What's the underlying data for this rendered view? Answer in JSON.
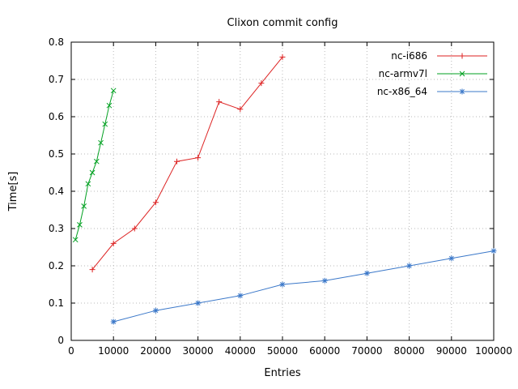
{
  "chart_data": {
    "type": "line",
    "title": "Clixon commit config",
    "xlabel": "Entries",
    "ylabel": "Time[s]",
    "xlim": [
      0,
      100000
    ],
    "ylim": [
      0,
      0.8
    ],
    "xticks": [
      0,
      10000,
      20000,
      30000,
      40000,
      50000,
      60000,
      70000,
      80000,
      90000,
      100000
    ],
    "xtick_labels": [
      "0",
      "10000",
      "20000",
      "30000",
      "40000",
      "50000",
      "60000",
      "70000",
      "80000",
      "90000",
      "100000"
    ],
    "yticks": [
      0,
      0.1,
      0.2,
      0.3,
      0.4,
      0.5,
      0.6,
      0.7,
      0.8
    ],
    "ytick_labels": [
      "0",
      "0.1",
      "0.2",
      "0.3",
      "0.4",
      "0.5",
      "0.6",
      "0.7",
      "0.8"
    ],
    "grid": true,
    "legend_position": "top-right-inside",
    "series": [
      {
        "name": "nc-i686",
        "color": "#dd2222",
        "marker": "plus",
        "x": [
          5000,
          10000,
          15000,
          20000,
          25000,
          30000,
          35000,
          40000,
          45000,
          50000
        ],
        "values": [
          0.19,
          0.26,
          0.3,
          0.37,
          0.48,
          0.49,
          0.64,
          0.62,
          0.69,
          0.76
        ]
      },
      {
        "name": "nc-armv7l",
        "color": "#00a020",
        "marker": "cross",
        "x": [
          1000,
          2000,
          3000,
          4000,
          5000,
          6000,
          7000,
          8000,
          9000,
          10000
        ],
        "values": [
          0.27,
          0.31,
          0.36,
          0.42,
          0.45,
          0.48,
          0.53,
          0.58,
          0.63,
          0.67
        ]
      },
      {
        "name": "nc-x86_64",
        "color": "#3b78c9",
        "marker": "star",
        "x": [
          10000,
          20000,
          30000,
          40000,
          50000,
          60000,
          70000,
          80000,
          90000,
          100000
        ],
        "values": [
          0.05,
          0.08,
          0.1,
          0.12,
          0.15,
          0.16,
          0.18,
          0.2,
          0.22,
          0.24
        ]
      }
    ]
  }
}
